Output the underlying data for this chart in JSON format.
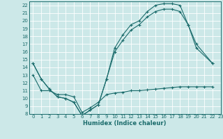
{
  "xlabel": "Humidex (Indice chaleur)",
  "xlim": [
    -0.5,
    23
  ],
  "ylim": [
    8,
    22.5
  ],
  "yticks": [
    8,
    9,
    10,
    11,
    12,
    13,
    14,
    15,
    16,
    17,
    18,
    19,
    20,
    21,
    22
  ],
  "xticks": [
    0,
    1,
    2,
    3,
    4,
    5,
    6,
    7,
    8,
    9,
    10,
    11,
    12,
    13,
    14,
    15,
    16,
    17,
    18,
    19,
    20,
    21,
    22,
    23
  ],
  "background_color": "#cce8e8",
  "grid_color": "#b0d8d8",
  "line_color": "#1a6b6b",
  "line_min_x": [
    0,
    1,
    2,
    3,
    4,
    5,
    6,
    7,
    8,
    9,
    10,
    11,
    12,
    13,
    14,
    15,
    16,
    17,
    18,
    19,
    20,
    21,
    22
  ],
  "line_min_y": [
    13.0,
    11.0,
    11.0,
    10.5,
    10.5,
    10.2,
    8.2,
    8.8,
    9.5,
    10.5,
    10.7,
    10.8,
    11.0,
    11.0,
    11.1,
    11.2,
    11.3,
    11.4,
    11.5,
    11.5,
    11.5,
    11.5,
    11.5
  ],
  "line_max_x": [
    0,
    1,
    2,
    3,
    4,
    5,
    6,
    7,
    8,
    9,
    10,
    11,
    12,
    13,
    14,
    15,
    16,
    17,
    18,
    19,
    20,
    22
  ],
  "line_max_y": [
    14.5,
    12.5,
    11.2,
    10.2,
    10.0,
    9.5,
    7.8,
    8.5,
    9.2,
    12.5,
    16.5,
    18.2,
    19.5,
    20.0,
    21.2,
    22.0,
    22.2,
    22.2,
    22.0,
    19.5,
    17.0,
    14.5
  ],
  "line_mid_x": [
    0,
    1,
    2,
    3,
    4,
    5,
    6,
    7,
    8,
    9,
    10,
    11,
    12,
    13,
    14,
    15,
    16,
    17,
    18,
    19,
    20,
    22
  ],
  "line_mid_y": [
    14.5,
    12.5,
    11.2,
    10.2,
    10.0,
    9.5,
    7.8,
    8.5,
    9.2,
    12.5,
    16.0,
    17.5,
    18.8,
    19.5,
    20.5,
    21.2,
    21.5,
    21.5,
    21.2,
    19.5,
    16.5,
    14.5
  ]
}
